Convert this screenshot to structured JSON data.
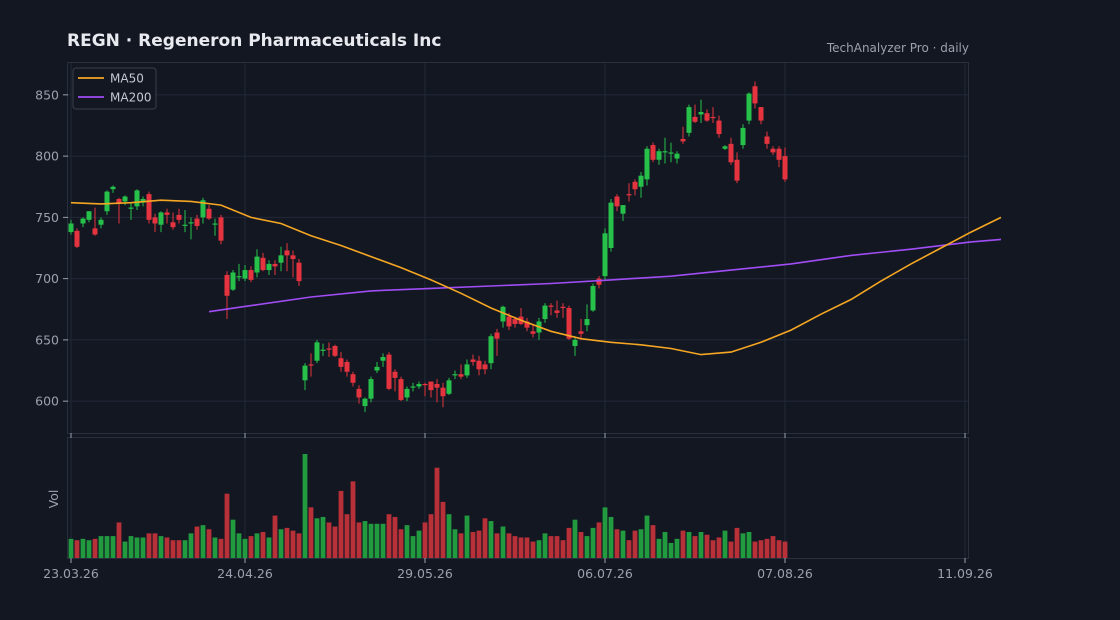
{
  "header": {
    "title": "REGN  ·  Regeneron Pharmaceuticals Inc",
    "source": "TechAnalyzer Pro · daily"
  },
  "colors": {
    "up": "#26c04a",
    "down": "#e5343f",
    "ma50": "#f5a623",
    "ma200": "#a04df5",
    "grid": "#232838",
    "background": "#131722"
  },
  "chart_data": {
    "type": "candlestick",
    "title": "REGN  ·  Regeneron Pharmaceuticals Inc",
    "x_ticks": [
      "23.03.26",
      "24.04.26",
      "29.05.26",
      "06.07.26",
      "07.08.26",
      "11.09.26"
    ],
    "y_ticks": [
      600,
      650,
      700,
      750,
      800,
      850
    ],
    "ylim": [
      574,
      876
    ],
    "volume_label": "Vol",
    "grid": true,
    "legend_position": "top-left",
    "legend": [
      {
        "name": "MA50",
        "color": "#f5a623"
      },
      {
        "name": "MA200",
        "color": "#a04df5"
      }
    ],
    "candles_ohlc": [
      [
        738,
        748,
        736,
        745
      ],
      [
        739,
        741,
        725,
        726
      ],
      [
        745,
        750,
        742,
        749
      ],
      [
        748,
        755,
        746,
        755
      ],
      [
        741,
        758,
        735,
        736
      ],
      [
        744,
        750,
        741,
        748
      ],
      [
        755,
        772,
        752,
        771
      ],
      [
        773,
        776,
        770,
        775
      ],
      [
        765,
        766,
        745,
        762
      ],
      [
        763,
        768,
        760,
        767
      ],
      [
        758,
        762,
        748,
        758
      ],
      [
        759,
        773,
        756,
        772
      ],
      [
        762,
        767,
        759,
        765
      ],
      [
        769,
        771,
        745,
        748
      ],
      [
        750,
        753,
        738,
        745
      ],
      [
        744,
        755,
        738,
        754
      ],
      [
        754,
        757,
        745,
        752
      ],
      [
        746,
        754,
        740,
        742
      ],
      [
        752,
        757,
        745,
        748
      ],
      [
        744,
        756,
        738,
        744
      ],
      [
        745,
        750,
        732,
        746
      ],
      [
        749,
        752,
        740,
        743
      ],
      [
        750,
        766,
        745,
        764
      ],
      [
        757,
        760,
        748,
        749
      ],
      [
        745,
        749,
        735,
        745
      ],
      [
        750,
        752,
        728,
        731
      ],
      [
        703,
        706,
        667,
        686
      ],
      [
        691,
        707,
        690,
        705
      ],
      [
        702,
        712,
        698,
        702
      ],
      [
        700,
        711,
        698,
        707
      ],
      [
        707,
        710,
        697,
        699
      ],
      [
        705,
        724,
        701,
        718
      ],
      [
        717,
        721,
        706,
        707
      ],
      [
        707,
        715,
        703,
        712
      ],
      [
        712,
        715,
        703,
        710
      ],
      [
        713,
        726,
        706,
        719
      ],
      [
        723,
        729,
        706,
        719
      ],
      [
        719,
        723,
        701,
        716
      ],
      [
        713,
        716,
        694,
        698
      ],
      [
        617,
        631,
        609,
        629
      ],
      [
        630,
        639,
        620,
        629
      ],
      [
        633,
        650,
        631,
        648
      ],
      [
        641,
        647,
        637,
        642
      ],
      [
        643,
        648,
        636,
        642
      ],
      [
        645,
        646,
        636,
        637
      ],
      [
        635,
        640,
        624,
        628
      ],
      [
        632,
        634,
        620,
        624
      ],
      [
        622,
        624,
        612,
        615
      ],
      [
        610,
        613,
        598,
        603
      ],
      [
        596,
        603,
        591,
        602
      ],
      [
        602,
        620,
        599,
        618
      ],
      [
        625,
        632,
        623,
        628
      ],
      [
        633,
        639,
        628,
        636
      ],
      [
        638,
        640,
        609,
        610
      ],
      [
        624,
        626,
        608,
        619
      ],
      [
        618,
        620,
        600,
        601
      ],
      [
        603,
        612,
        600,
        610
      ],
      [
        612,
        615,
        608,
        612
      ],
      [
        612,
        616,
        610,
        614
      ],
      [
        614,
        615,
        604,
        613
      ],
      [
        616,
        616,
        603,
        609
      ],
      [
        614,
        618,
        599,
        611
      ],
      [
        611,
        615,
        595,
        604
      ],
      [
        606,
        619,
        605,
        617
      ],
      [
        621,
        625,
        618,
        622
      ],
      [
        622,
        630,
        618,
        620
      ],
      [
        621,
        634,
        619,
        630
      ],
      [
        634,
        638,
        629,
        632
      ],
      [
        633,
        637,
        621,
        626
      ],
      [
        630,
        633,
        622,
        626
      ],
      [
        631,
        655,
        626,
        653
      ],
      [
        656,
        659,
        637,
        651
      ],
      [
        665,
        678,
        660,
        677
      ],
      [
        669,
        672,
        658,
        661
      ],
      [
        667,
        669,
        660,
        663
      ],
      [
        669,
        676,
        662,
        663
      ],
      [
        665,
        668,
        657,
        660
      ],
      [
        657,
        662,
        652,
        655
      ],
      [
        656,
        668,
        650,
        665
      ],
      [
        667,
        680,
        664,
        678
      ],
      [
        678,
        680,
        670,
        677
      ],
      [
        674,
        682,
        668,
        672
      ],
      [
        677,
        680,
        668,
        676
      ],
      [
        676,
        678,
        650,
        651
      ],
      [
        645,
        653,
        637,
        650
      ],
      [
        657,
        667,
        650,
        655
      ],
      [
        662,
        679,
        657,
        667
      ],
      [
        674,
        696,
        673,
        694
      ],
      [
        700,
        702,
        692,
        695
      ],
      [
        702,
        741,
        698,
        737
      ],
      [
        725,
        765,
        722,
        762
      ],
      [
        767,
        769,
        755,
        759
      ],
      [
        753,
        760,
        747,
        760
      ],
      [
        769,
        778,
        763,
        768
      ],
      [
        779,
        781,
        768,
        773
      ],
      [
        775,
        787,
        766,
        784
      ],
      [
        781,
        808,
        776,
        806
      ],
      [
        809,
        811,
        795,
        797
      ],
      [
        797,
        806,
        793,
        804
      ],
      [
        803,
        815,
        794,
        804
      ],
      [
        802,
        811,
        795,
        803
      ],
      [
        798,
        804,
        794,
        802
      ],
      [
        814,
        824,
        810,
        812
      ],
      [
        819,
        842,
        816,
        840
      ],
      [
        832,
        842,
        827,
        828
      ],
      [
        834,
        846,
        827,
        836
      ],
      [
        835,
        838,
        828,
        829
      ],
      [
        832,
        840,
        827,
        831
      ],
      [
        829,
        833,
        815,
        818
      ],
      [
        806,
        809,
        805,
        808
      ],
      [
        810,
        815,
        793,
        795
      ],
      [
        797,
        803,
        778,
        780
      ],
      [
        809,
        826,
        806,
        823
      ],
      [
        829,
        852,
        826,
        851
      ],
      [
        857,
        861,
        839,
        843
      ],
      [
        840,
        840,
        826,
        829
      ],
      [
        816,
        820,
        806,
        810
      ],
      [
        806,
        808,
        801,
        803
      ],
      [
        806,
        808,
        791,
        797
      ],
      [
        800,
        807,
        779,
        781
      ]
    ],
    "volume": [
      1.4,
      1.3,
      1.4,
      1.3,
      1.4,
      1.6,
      1.6,
      1.6,
      2.6,
      1.2,
      1.6,
      1.5,
      1.5,
      1.8,
      1.8,
      1.6,
      1.5,
      1.3,
      1.3,
      1.3,
      1.8,
      2.3,
      2.4,
      2.1,
      1.5,
      1.4,
      4.7,
      2.8,
      1.8,
      1.4,
      1.6,
      1.8,
      1.9,
      1.5,
      3.1,
      2.1,
      2.2,
      2.0,
      1.8,
      7.6,
      3.7,
      2.9,
      3.0,
      2.6,
      2.3,
      4.9,
      3.2,
      5.6,
      2.6,
      2.7,
      2.5,
      2.5,
      2.5,
      3.2,
      3.0,
      2.1,
      2.4,
      1.6,
      2.0,
      2.6,
      3.2,
      6.6,
      4.1,
      3.2,
      2.1,
      1.8,
      3.1,
      1.9,
      2.0,
      2.9,
      2.7,
      1.8,
      2.3,
      1.8,
      1.6,
      1.5,
      1.5,
      1.2,
      1.3,
      1.8,
      1.6,
      1.6,
      1.3,
      2.2,
      2.8,
      1.9,
      1.6,
      2.2,
      2.6,
      3.7,
      3.0,
      2.1,
      2.0,
      1.3,
      2.0,
      2.1,
      3.1,
      2.4,
      1.4,
      1.9,
      1.1,
      1.4,
      2.0,
      1.9,
      1.6,
      1.9,
      1.7,
      1.3,
      1.5,
      2.0,
      1.2,
      2.2,
      1.8,
      1.9,
      1.2,
      1.3,
      1.4,
      1.6,
      1.3,
      1.2
    ],
    "ma50": [
      [
        0,
        762
      ],
      [
        5,
        761
      ],
      [
        10,
        762
      ],
      [
        15,
        764
      ],
      [
        20,
        763
      ],
      [
        25,
        760
      ],
      [
        30,
        750
      ],
      [
        35,
        745
      ],
      [
        40,
        735
      ],
      [
        45,
        727
      ],
      [
        50,
        718
      ],
      [
        55,
        709
      ],
      [
        60,
        699
      ],
      [
        65,
        688
      ],
      [
        70,
        676
      ],
      [
        75,
        666
      ],
      [
        80,
        657
      ],
      [
        85,
        651
      ],
      [
        90,
        648
      ],
      [
        95,
        646
      ],
      [
        100,
        643
      ],
      [
        105,
        638
      ],
      [
        110,
        640
      ],
      [
        115,
        648
      ],
      [
        120,
        658
      ],
      [
        125,
        671
      ],
      [
        130,
        683
      ],
      [
        135,
        698
      ],
      [
        140,
        712
      ],
      [
        145,
        725
      ],
      [
        150,
        738
      ],
      [
        155,
        750
      ]
    ],
    "ma200": [
      [
        23,
        673
      ],
      [
        30,
        678
      ],
      [
        40,
        685
      ],
      [
        50,
        690
      ],
      [
        60,
        692
      ],
      [
        70,
        694
      ],
      [
        80,
        696
      ],
      [
        90,
        699
      ],
      [
        100,
        702
      ],
      [
        110,
        707
      ],
      [
        120,
        712
      ],
      [
        130,
        719
      ],
      [
        140,
        724
      ],
      [
        150,
        730
      ],
      [
        155,
        732
      ]
    ]
  }
}
